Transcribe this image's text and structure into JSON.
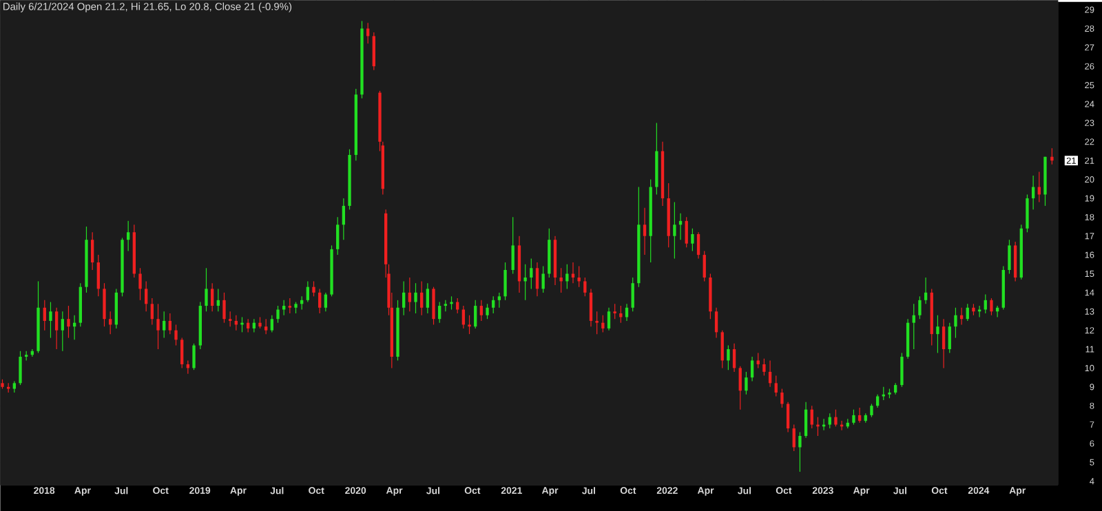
{
  "chart_data": {
    "type": "candlestick",
    "title": "Daily 6/21/2024 Open 21.2, Hi 21.65, Lo 20.8, Close 21 (-0.9%)",
    "x": [
      "2017-09-25",
      "2017-10-09",
      "2017-10-23",
      "2017-11-06",
      "2017-11-20",
      "2017-12-04",
      "2017-12-18",
      "2018-01-02",
      "2018-01-16",
      "2018-01-30",
      "2018-02-13",
      "2018-02-27",
      "2018-03-13",
      "2018-03-27",
      "2018-04-10",
      "2018-04-24",
      "2018-05-08",
      "2018-05-22",
      "2018-06-05",
      "2018-06-19",
      "2018-07-03",
      "2018-07-17",
      "2018-07-31",
      "2018-08-14",
      "2018-08-28",
      "2018-09-11",
      "2018-09-25",
      "2018-10-09",
      "2018-10-23",
      "2018-11-06",
      "2018-11-20",
      "2018-12-04",
      "2018-12-18",
      "2019-01-02",
      "2019-01-16",
      "2019-01-30",
      "2019-02-13",
      "2019-02-27",
      "2019-03-13",
      "2019-03-27",
      "2019-04-10",
      "2019-04-24",
      "2019-05-08",
      "2019-05-22",
      "2019-06-05",
      "2019-06-19",
      "2019-07-03",
      "2019-07-17",
      "2019-07-31",
      "2019-08-14",
      "2019-08-28",
      "2019-09-11",
      "2019-09-25",
      "2019-10-09",
      "2019-10-23",
      "2019-11-06",
      "2019-11-20",
      "2019-12-04",
      "2019-12-18",
      "2020-01-02",
      "2020-01-16",
      "2020-01-30",
      "2020-02-13",
      "2020-02-27",
      "2020-03-05",
      "2020-03-12",
      "2020-03-19",
      "2020-03-26",
      "2020-04-09",
      "2020-04-23",
      "2020-05-07",
      "2020-05-21",
      "2020-06-04",
      "2020-06-18",
      "2020-07-02",
      "2020-07-16",
      "2020-07-30",
      "2020-08-13",
      "2020-08-27",
      "2020-09-10",
      "2020-09-24",
      "2020-10-08",
      "2020-10-22",
      "2020-11-05",
      "2020-11-19",
      "2020-12-03",
      "2020-12-17",
      "2021-01-04",
      "2021-01-19",
      "2021-02-02",
      "2021-02-16",
      "2021-03-02",
      "2021-03-16",
      "2021-03-30",
      "2021-04-13",
      "2021-04-27",
      "2021-05-11",
      "2021-05-25",
      "2021-06-08",
      "2021-06-22",
      "2021-07-06",
      "2021-07-20",
      "2021-08-03",
      "2021-08-17",
      "2021-08-31",
      "2021-09-14",
      "2021-09-28",
      "2021-10-12",
      "2021-10-26",
      "2021-11-09",
      "2021-11-23",
      "2021-12-07",
      "2021-12-21",
      "2022-01-04",
      "2022-01-18",
      "2022-02-01",
      "2022-02-15",
      "2022-03-01",
      "2022-03-15",
      "2022-03-29",
      "2022-04-12",
      "2022-04-26",
      "2022-05-10",
      "2022-05-24",
      "2022-06-07",
      "2022-06-21",
      "2022-07-05",
      "2022-07-19",
      "2022-08-02",
      "2022-08-16",
      "2022-08-30",
      "2022-09-13",
      "2022-09-27",
      "2022-10-11",
      "2022-10-25",
      "2022-11-08",
      "2022-11-22",
      "2022-12-06",
      "2022-12-20",
      "2023-01-03",
      "2023-01-17",
      "2023-01-31",
      "2023-02-14",
      "2023-02-28",
      "2023-03-14",
      "2023-03-28",
      "2023-04-11",
      "2023-04-25",
      "2023-05-09",
      "2023-05-23",
      "2023-06-06",
      "2023-06-20",
      "2023-07-05",
      "2023-07-19",
      "2023-08-02",
      "2023-08-16",
      "2023-08-30",
      "2023-09-13",
      "2023-09-27",
      "2023-10-11",
      "2023-10-25",
      "2023-11-08",
      "2023-11-22",
      "2023-12-06",
      "2023-12-20",
      "2024-01-03",
      "2024-01-17",
      "2024-01-31",
      "2024-02-14",
      "2024-02-28",
      "2024-03-13",
      "2024-03-27",
      "2024-04-10",
      "2024-04-24",
      "2024-05-08",
      "2024-05-22",
      "2024-06-05",
      "2024-06-21"
    ],
    "ohlc": [
      [
        9.2,
        9.4,
        8.9,
        9.0
      ],
      [
        9.0,
        9.2,
        8.7,
        8.9
      ],
      [
        8.9,
        9.3,
        8.7,
        9.2
      ],
      [
        9.2,
        10.9,
        9.1,
        10.6
      ],
      [
        10.6,
        10.9,
        10.4,
        10.7
      ],
      [
        10.7,
        11.0,
        10.6,
        10.9
      ],
      [
        10.9,
        14.6,
        10.8,
        13.2
      ],
      [
        13.2,
        13.6,
        12.0,
        12.5
      ],
      [
        12.5,
        13.5,
        11.6,
        13.0
      ],
      [
        13.0,
        13.2,
        11.0,
        12.0
      ],
      [
        12.0,
        13.0,
        10.9,
        12.6
      ],
      [
        12.6,
        13.3,
        11.6,
        12.2
      ],
      [
        12.2,
        12.8,
        11.5,
        12.4
      ],
      [
        12.4,
        14.5,
        12.2,
        14.3
      ],
      [
        14.3,
        17.5,
        14.0,
        16.8
      ],
      [
        16.8,
        17.2,
        15.2,
        15.6
      ],
      [
        15.6,
        16.0,
        13.8,
        14.2
      ],
      [
        14.2,
        14.5,
        12.2,
        12.6
      ],
      [
        12.6,
        13.0,
        11.8,
        12.3
      ],
      [
        12.3,
        14.2,
        12.1,
        14.0
      ],
      [
        14.0,
        16.9,
        13.8,
        16.8
      ],
      [
        16.8,
        17.8,
        16.2,
        17.2
      ],
      [
        17.2,
        17.6,
        14.8,
        15.0
      ],
      [
        15.0,
        15.3,
        13.6,
        14.2
      ],
      [
        14.2,
        14.6,
        13.0,
        13.4
      ],
      [
        13.4,
        13.7,
        12.3,
        12.6
      ],
      [
        12.6,
        13.4,
        11.0,
        12.0
      ],
      [
        12.0,
        13.0,
        11.6,
        12.5
      ],
      [
        12.5,
        12.9,
        11.8,
        12.0
      ],
      [
        12.0,
        12.3,
        11.2,
        11.5
      ],
      [
        11.5,
        11.6,
        10.0,
        10.2
      ],
      [
        10.2,
        10.4,
        9.7,
        10.0
      ],
      [
        10.0,
        11.3,
        9.9,
        11.2
      ],
      [
        11.2,
        13.5,
        11.0,
        13.3
      ],
      [
        13.3,
        15.3,
        13.0,
        14.2
      ],
      [
        14.2,
        14.5,
        13.0,
        13.3
      ],
      [
        13.3,
        14.2,
        13.0,
        13.6
      ],
      [
        13.6,
        14.0,
        12.4,
        12.6
      ],
      [
        12.6,
        13.0,
        12.2,
        12.5
      ],
      [
        12.5,
        12.8,
        12.0,
        12.3
      ],
      [
        12.3,
        12.7,
        11.9,
        12.4
      ],
      [
        12.4,
        12.6,
        11.9,
        12.1
      ],
      [
        12.1,
        12.6,
        11.9,
        12.4
      ],
      [
        12.4,
        12.7,
        12.1,
        12.2
      ],
      [
        12.2,
        12.6,
        11.8,
        12.0
      ],
      [
        12.0,
        12.8,
        11.9,
        12.6
      ],
      [
        12.6,
        13.3,
        12.4,
        13.1
      ],
      [
        13.1,
        13.6,
        12.8,
        13.3
      ],
      [
        13.3,
        13.7,
        12.9,
        13.2
      ],
      [
        13.2,
        13.5,
        12.9,
        13.4
      ],
      [
        13.4,
        13.8,
        13.1,
        13.6
      ],
      [
        13.6,
        14.6,
        13.5,
        14.3
      ],
      [
        14.3,
        14.6,
        13.8,
        14.0
      ],
      [
        14.0,
        14.2,
        12.9,
        13.2
      ],
      [
        13.2,
        14.0,
        13.0,
        13.9
      ],
      [
        13.9,
        16.5,
        13.8,
        16.3
      ],
      [
        16.3,
        18.0,
        16.0,
        17.6
      ],
      [
        17.6,
        19.0,
        16.8,
        18.6
      ],
      [
        18.6,
        21.6,
        18.4,
        21.3
      ],
      [
        21.3,
        24.8,
        21.0,
        24.5
      ],
      [
        24.5,
        28.4,
        24.3,
        28.0
      ],
      [
        28.0,
        28.3,
        27.2,
        27.6
      ],
      [
        27.6,
        27.8,
        25.8,
        26.0
      ],
      [
        24.6,
        24.7,
        21.5,
        22.0
      ],
      [
        21.8,
        22.0,
        19.2,
        19.5
      ],
      [
        18.2,
        18.4,
        14.8,
        15.5
      ],
      [
        15.0,
        15.5,
        12.8,
        13.2
      ],
      [
        13.2,
        14.0,
        10.0,
        10.6
      ],
      [
        10.6,
        13.6,
        10.4,
        13.2
      ],
      [
        13.2,
        14.6,
        12.8,
        14.0
      ],
      [
        14.0,
        14.8,
        13.0,
        13.5
      ],
      [
        13.5,
        14.5,
        12.9,
        14.0
      ],
      [
        14.0,
        14.6,
        12.8,
        13.2
      ],
      [
        13.2,
        14.5,
        12.9,
        14.2
      ],
      [
        14.2,
        14.3,
        12.3,
        12.6
      ],
      [
        12.6,
        13.5,
        12.4,
        13.3
      ],
      [
        13.3,
        13.6,
        13.0,
        13.4
      ],
      [
        13.4,
        13.8,
        13.1,
        13.5
      ],
      [
        13.5,
        13.7,
        12.9,
        13.1
      ],
      [
        13.1,
        13.3,
        12.1,
        12.3
      ],
      [
        12.3,
        12.8,
        11.8,
        12.2
      ],
      [
        12.2,
        13.6,
        12.1,
        13.3
      ],
      [
        13.3,
        13.6,
        12.5,
        12.8
      ],
      [
        12.8,
        13.4,
        12.6,
        13.2
      ],
      [
        13.2,
        13.8,
        12.9,
        13.6
      ],
      [
        13.6,
        14.0,
        13.2,
        13.8
      ],
      [
        13.8,
        15.6,
        13.6,
        15.2
      ],
      [
        15.2,
        18.0,
        15.0,
        16.5
      ],
      [
        16.5,
        17.0,
        14.0,
        14.6
      ],
      [
        14.6,
        15.5,
        13.6,
        14.8
      ],
      [
        14.8,
        15.8,
        14.2,
        15.3
      ],
      [
        15.3,
        15.6,
        13.8,
        14.2
      ],
      [
        14.2,
        15.4,
        14.0,
        15.0
      ],
      [
        15.0,
        17.4,
        14.8,
        16.8
      ],
      [
        16.8,
        17.0,
        14.4,
        14.8
      ],
      [
        14.8,
        15.3,
        14.0,
        14.6
      ],
      [
        14.6,
        15.5,
        14.2,
        15.0
      ],
      [
        15.0,
        15.6,
        14.5,
        14.8
      ],
      [
        14.8,
        15.4,
        14.3,
        14.6
      ],
      [
        14.6,
        14.8,
        13.8,
        14.0
      ],
      [
        14.0,
        14.2,
        12.2,
        12.5
      ],
      [
        12.5,
        13.0,
        11.8,
        12.4
      ],
      [
        12.4,
        12.8,
        11.9,
        12.1
      ],
      [
        12.1,
        13.2,
        12.0,
        13.0
      ],
      [
        13.0,
        13.4,
        12.6,
        12.9
      ],
      [
        12.9,
        13.3,
        12.4,
        12.7
      ],
      [
        12.7,
        13.4,
        12.5,
        13.2
      ],
      [
        13.2,
        14.8,
        13.0,
        14.5
      ],
      [
        14.5,
        19.6,
        14.3,
        17.6
      ],
      [
        17.6,
        18.5,
        16.0,
        17.0
      ],
      [
        17.0,
        20.0,
        15.6,
        19.6
      ],
      [
        19.6,
        23.0,
        19.2,
        21.5
      ],
      [
        21.5,
        22.0,
        18.6,
        19.0
      ],
      [
        19.0,
        19.8,
        16.4,
        17.0
      ],
      [
        17.0,
        18.8,
        15.8,
        17.6
      ],
      [
        17.6,
        18.2,
        16.8,
        17.8
      ],
      [
        17.8,
        18.0,
        16.4,
        16.6
      ],
      [
        16.6,
        17.4,
        16.2,
        17.1
      ],
      [
        17.1,
        17.2,
        15.8,
        16.0
      ],
      [
        16.0,
        16.2,
        14.6,
        14.8
      ],
      [
        14.8,
        15.0,
        12.6,
        13.0
      ],
      [
        13.0,
        13.2,
        11.6,
        11.9
      ],
      [
        11.9,
        12.0,
        10.0,
        10.4
      ],
      [
        10.4,
        11.2,
        9.9,
        11.0
      ],
      [
        11.0,
        11.3,
        9.8,
        10.0
      ],
      [
        10.0,
        10.1,
        7.8,
        8.8
      ],
      [
        8.8,
        9.8,
        8.6,
        9.5
      ],
      [
        9.5,
        10.6,
        9.3,
        10.4
      ],
      [
        10.4,
        10.8,
        10.0,
        10.2
      ],
      [
        10.2,
        10.5,
        9.6,
        9.8
      ],
      [
        9.8,
        10.4,
        9.0,
        9.2
      ],
      [
        9.2,
        9.6,
        8.5,
        8.7
      ],
      [
        8.7,
        8.9,
        7.9,
        8.1
      ],
      [
        8.1,
        8.2,
        6.6,
        6.8
      ],
      [
        6.8,
        7.0,
        5.6,
        5.8
      ],
      [
        5.8,
        6.6,
        4.5,
        6.4
      ],
      [
        6.4,
        8.2,
        6.3,
        7.8
      ],
      [
        7.8,
        8.0,
        6.8,
        7.0
      ],
      [
        7.0,
        7.4,
        6.4,
        6.9
      ],
      [
        6.9,
        7.3,
        6.7,
        7.0
      ],
      [
        7.0,
        7.6,
        6.8,
        7.4
      ],
      [
        7.4,
        7.8,
        6.9,
        7.0
      ],
      [
        7.0,
        7.2,
        6.7,
        6.9
      ],
      [
        6.9,
        7.3,
        6.8,
        7.1
      ],
      [
        7.1,
        7.8,
        7.0,
        7.5
      ],
      [
        7.5,
        7.9,
        7.1,
        7.2
      ],
      [
        7.2,
        7.6,
        7.1,
        7.5
      ],
      [
        7.5,
        8.1,
        7.4,
        8.0
      ],
      [
        8.0,
        8.6,
        7.9,
        8.5
      ],
      [
        8.5,
        9.0,
        8.3,
        8.6
      ],
      [
        8.6,
        8.9,
        8.4,
        8.7
      ],
      [
        8.7,
        9.2,
        8.6,
        9.1
      ],
      [
        9.1,
        10.8,
        9.0,
        10.6
      ],
      [
        10.6,
        12.6,
        10.5,
        12.4
      ],
      [
        12.4,
        13.4,
        11.0,
        12.8
      ],
      [
        12.8,
        13.8,
        12.6,
        13.6
      ],
      [
        13.6,
        14.8,
        13.4,
        14.0
      ],
      [
        14.0,
        14.2,
        11.2,
        11.8
      ],
      [
        11.8,
        12.8,
        10.8,
        12.2
      ],
      [
        12.2,
        12.6,
        10.0,
        11.0
      ],
      [
        11.0,
        12.4,
        10.8,
        12.2
      ],
      [
        12.2,
        13.2,
        11.6,
        12.8
      ],
      [
        12.8,
        13.2,
        12.3,
        12.6
      ],
      [
        12.6,
        13.4,
        12.5,
        13.2
      ],
      [
        13.2,
        13.4,
        12.8,
        13.0
      ],
      [
        13.0,
        13.3,
        12.7,
        13.1
      ],
      [
        13.1,
        13.9,
        12.9,
        13.6
      ],
      [
        13.6,
        13.7,
        12.8,
        13.0
      ],
      [
        13.0,
        13.3,
        12.7,
        13.2
      ],
      [
        13.2,
        15.4,
        13.1,
        15.2
      ],
      [
        15.2,
        16.8,
        15.0,
        16.5
      ],
      [
        16.5,
        16.7,
        14.6,
        14.8
      ],
      [
        14.8,
        17.6,
        14.7,
        17.4
      ],
      [
        17.4,
        19.2,
        17.2,
        19.0
      ],
      [
        19.0,
        20.2,
        18.4,
        19.6
      ],
      [
        19.6,
        20.4,
        18.8,
        19.2
      ],
      [
        19.2,
        21.2,
        18.6,
        21.2
      ],
      [
        21.2,
        21.65,
        20.8,
        21.0
      ]
    ],
    "xlim": [
      "2017-09-20",
      "2024-07-05"
    ],
    "ylim": [
      3.8,
      29.5
    ],
    "yticks": [
      4,
      5,
      6,
      7,
      8,
      9,
      10,
      11,
      12,
      13,
      14,
      15,
      16,
      17,
      18,
      19,
      20,
      21,
      22,
      23,
      24,
      25,
      26,
      27,
      28,
      29
    ],
    "xticks": [
      {
        "value": "2018-01-01",
        "label": "2018"
      },
      {
        "value": "2018-04-01",
        "label": "Apr"
      },
      {
        "value": "2018-07-01",
        "label": "Jul"
      },
      {
        "value": "2018-10-01",
        "label": "Oct"
      },
      {
        "value": "2019-01-01",
        "label": "2019"
      },
      {
        "value": "2019-04-01",
        "label": "Apr"
      },
      {
        "value": "2019-07-01",
        "label": "Jul"
      },
      {
        "value": "2019-10-01",
        "label": "Oct"
      },
      {
        "value": "2020-01-01",
        "label": "2020"
      },
      {
        "value": "2020-04-01",
        "label": "Apr"
      },
      {
        "value": "2020-07-01",
        "label": "Jul"
      },
      {
        "value": "2020-10-01",
        "label": "Oct"
      },
      {
        "value": "2021-01-01",
        "label": "2021"
      },
      {
        "value": "2021-04-01",
        "label": "Apr"
      },
      {
        "value": "2021-07-01",
        "label": "Jul"
      },
      {
        "value": "2021-10-01",
        "label": "Oct"
      },
      {
        "value": "2022-01-01",
        "label": "2022"
      },
      {
        "value": "2022-04-01",
        "label": "Apr"
      },
      {
        "value": "2022-07-01",
        "label": "Jul"
      },
      {
        "value": "2022-10-01",
        "label": "Oct"
      },
      {
        "value": "2023-01-01",
        "label": "2023"
      },
      {
        "value": "2023-04-01",
        "label": "Apr"
      },
      {
        "value": "2023-07-01",
        "label": "Jul"
      },
      {
        "value": "2023-10-01",
        "label": "Oct"
      },
      {
        "value": "2024-01-01",
        "label": "2024"
      },
      {
        "value": "2024-04-01",
        "label": "Apr"
      }
    ],
    "grid": true,
    "annotations": [
      {
        "text": "21",
        "x": "2024-06-21",
        "y": 21
      }
    ]
  }
}
